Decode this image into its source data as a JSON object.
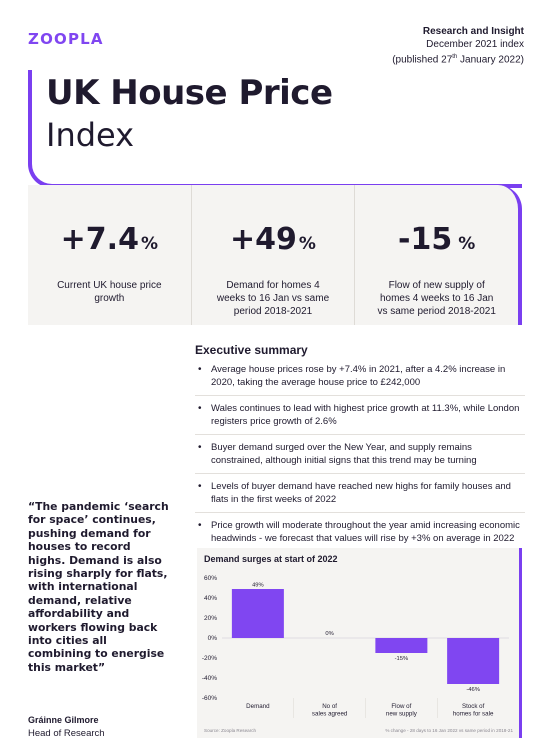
{
  "brand": {
    "logo_text": "ZOOPLA",
    "accent": "#7a3ff0"
  },
  "meta": {
    "kicker": "Research and Insight",
    "index": "December 2021 index",
    "published_prefix": "(published 27",
    "published_sup": "th",
    "published_suffix": " January 2022)"
  },
  "title": {
    "line1": "UK House Price",
    "line2": "Index"
  },
  "stats": [
    {
      "value": "+7.4",
      "unit": "%",
      "label": "Current UK house price growth"
    },
    {
      "value": "+49",
      "unit": "%",
      "label": "Demand for homes 4 weeks to 16 Jan vs same period 2018-2021"
    },
    {
      "value": "-15",
      "unit": "%",
      "label": "Flow of new supply of homes 4 weeks to 16 Jan vs same period 2018-2021"
    }
  ],
  "summary": {
    "title": "Executive summary",
    "items": [
      "Average house prices rose by +7.4% in 2021, after a 4.2% increase in 2020, taking the average house price to £242,000",
      "Wales continues to lead with highest price growth at 11.3%, while London registers price growth of 2.6%",
      "Buyer demand surged over the New Year, and supply remains constrained, although initial signs that this trend may be turning",
      "Levels of buyer demand have reached new highs for family houses and flats in the first weeks of 2022",
      "Price growth will moderate throughout the year amid increasing economic headwinds - we forecast that values will rise by +3% on average in 2022"
    ]
  },
  "quote": {
    "text": "“The pandemic ‘search for space’ continues, pushing demand for houses to record highs. Demand is also rising sharply for flats, with international demand, relative affordability and workers flowing back into cities all combining to energise this market”",
    "author": "Gráinne Gilmore",
    "role": "Head of Research"
  },
  "chart_data": {
    "type": "bar",
    "title": "Demand surges at start of 2022",
    "categories": [
      [
        "Demand"
      ],
      [
        "No of",
        "sales agreed"
      ],
      [
        "Flow of",
        "new supply"
      ],
      [
        "Stock of",
        "homes for sale"
      ]
    ],
    "values": [
      49,
      0,
      -15,
      -46
    ],
    "value_labels": [
      "49%",
      "0%",
      "-15%",
      "-46%"
    ],
    "ylim": [
      -60,
      60
    ],
    "yticks": [
      "60%",
      "40%",
      "20%",
      "0%",
      "-20%",
      "-40%",
      "-60%"
    ],
    "bar_color": "#8046f1",
    "source": "Source: Zoopla Research",
    "footnote": "% change - 28 days to 16 Jan 2022 vs same period in 2018-21",
    "grid": false,
    "legend": "none"
  }
}
